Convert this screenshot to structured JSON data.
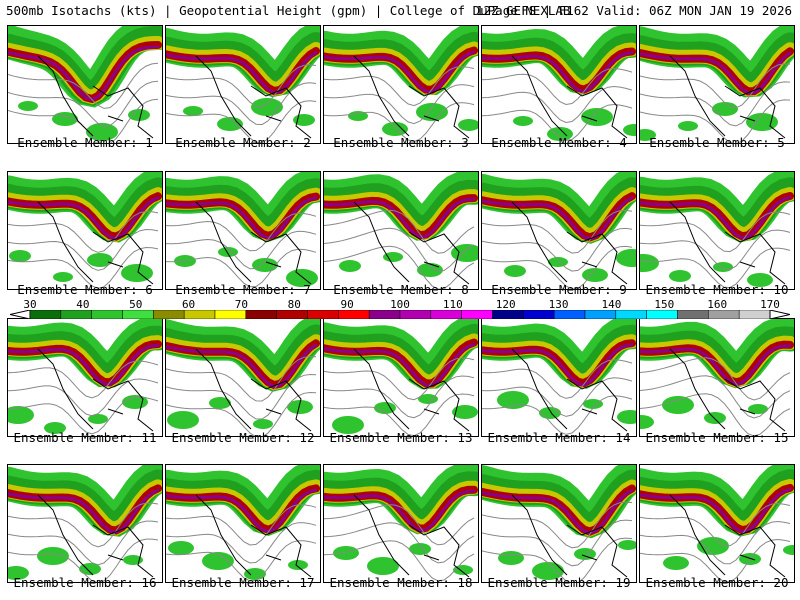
{
  "header": {
    "title_left": "500mb Isotachs (kts) | Geopotential Height (gpm) | College of DuPage NEXLAB",
    "title_right": "12Z GEFS | F162 Valid: 06Z MON JAN 19 2026"
  },
  "members": [
    {
      "label": "Ensemble Member: 1"
    },
    {
      "label": "Ensemble Member: 2"
    },
    {
      "label": "Ensemble Member: 3"
    },
    {
      "label": "Ensemble Member: 4"
    },
    {
      "label": "Ensemble Member: 5"
    },
    {
      "label": "Ensemble Member: 6"
    },
    {
      "label": "Ensemble Member: 7"
    },
    {
      "label": "Ensemble Member: 8"
    },
    {
      "label": "Ensemble Member: 9"
    },
    {
      "label": "Ensemble Member: 10"
    },
    {
      "label": "Ensemble Member: 11"
    },
    {
      "label": "Ensemble Member: 12"
    },
    {
      "label": "Ensemble Member: 13"
    },
    {
      "label": "Ensemble Member: 14"
    },
    {
      "label": "Ensemble Member: 15"
    },
    {
      "label": "Ensemble Member: 16"
    },
    {
      "label": "Ensemble Member: 17"
    },
    {
      "label": "Ensemble Member: 18"
    },
    {
      "label": "Ensemble Member: 19"
    },
    {
      "label": "Ensemble Member: 20"
    }
  ],
  "colorbar": {
    "labels": [
      "30",
      "40",
      "50",
      "60",
      "70",
      "80",
      "90",
      "100",
      "110",
      "120",
      "130",
      "140",
      "150",
      "160",
      "170"
    ],
    "colors": [
      "#0a6e0a",
      "#1fa01f",
      "#2fc42f",
      "#3fdf3f",
      "#8b8b00",
      "#c8c800",
      "#ffff00",
      "#8b0000",
      "#b00000",
      "#d80000",
      "#ff0000",
      "#8b008b",
      "#b000b0",
      "#d800d8",
      "#ff00ff",
      "#00008b",
      "#0000d0",
      "#0060ff",
      "#00a0ff",
      "#00d8ff",
      "#00ffff",
      "#707070",
      "#a0a0a0",
      "#d0d0d0"
    ]
  }
}
